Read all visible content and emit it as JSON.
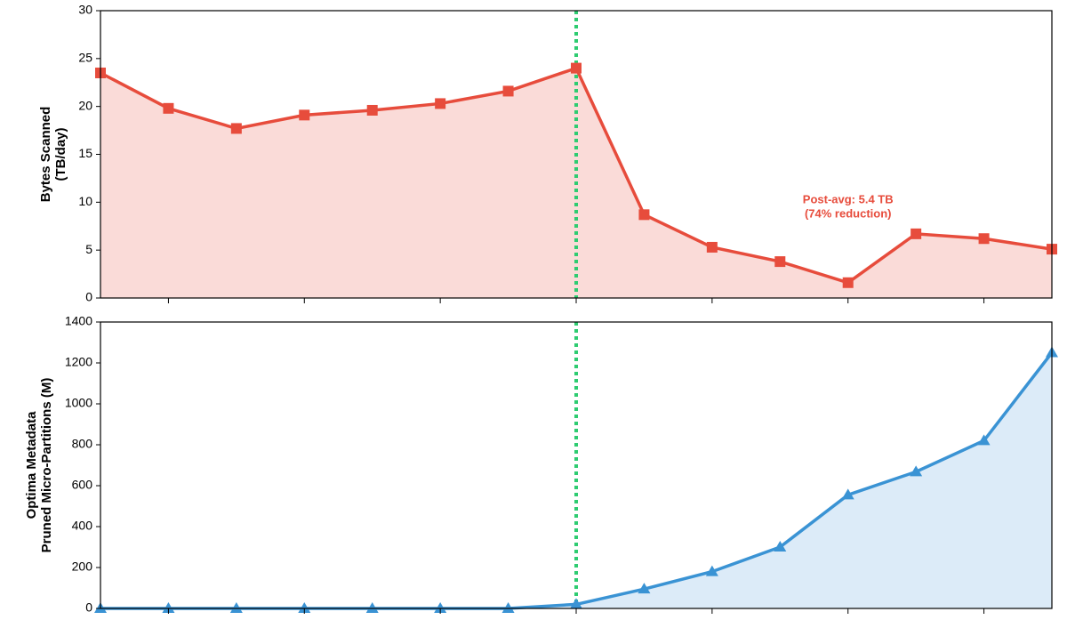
{
  "chart_data": [
    {
      "type": "line",
      "ylabel": [
        "Bytes Scanned",
        "(TB/day)"
      ],
      "categories": [
        null,
        null,
        null,
        null,
        null,
        null,
        null,
        null,
        null,
        null,
        null,
        null,
        null,
        null,
        null
      ],
      "values": [
        23.5,
        19.8,
        17.7,
        19.1,
        19.6,
        20.3,
        21.6,
        24.0,
        8.7,
        5.3,
        3.8,
        1.6,
        6.7,
        6.2,
        5.1
      ],
      "color": "#e74c3c",
      "fill": "#fadbd8",
      "marker": "square",
      "ylim": [
        0,
        30
      ],
      "yticks": [
        0,
        5,
        10,
        15,
        20,
        25,
        30
      ],
      "vline": {
        "index": 7,
        "color": "#2ecc71"
      },
      "annotation": [
        "Post-avg: 5.4 TB",
        "(74% reduction)"
      ]
    },
    {
      "type": "line",
      "ylabel": [
        "Optima Metadata",
        "Pruned Micro-Partitions (M)"
      ],
      "categories": [
        null,
        null,
        null,
        null,
        null,
        null,
        null,
        null,
        null,
        null,
        null,
        null,
        null,
        null,
        null
      ],
      "values": [
        0,
        0,
        0,
        0,
        0,
        0,
        0,
        20,
        95,
        180,
        300,
        555,
        668,
        820,
        1250
      ],
      "color": "#3a93d4",
      "fill": "#dcebf8",
      "marker": "triangle",
      "ylim": [
        0,
        1400
      ],
      "yticks": [
        0,
        200,
        400,
        600,
        800,
        1000,
        1200,
        1400
      ],
      "vline": {
        "index": 7,
        "color": "#2ecc71"
      }
    }
  ]
}
